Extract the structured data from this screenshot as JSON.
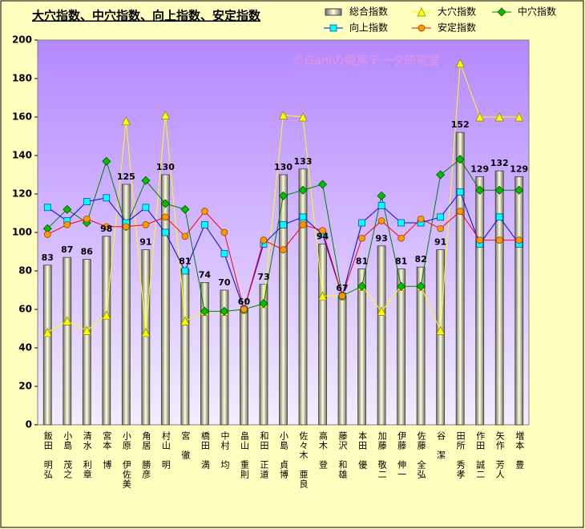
{
  "chart_data": {
    "type": "combo",
    "title": "大穴指数、中穴指数、向上指数、安定指数",
    "watermark": "©Ganiの競馬データ研究室",
    "categories": [
      "飯田　明弘",
      "小島　茂之",
      "清水　利章",
      "宮本　博",
      "小原　伊佐美",
      "角居　勝彦",
      "村山　明",
      "宮　徹",
      "橋田　満",
      "中村　均",
      "畠山　重則",
      "和田　正道",
      "小島　貞博",
      "佐々木　亜良",
      "高木　登",
      "藤沢　和雄",
      "本田　優",
      "加藤　敬二",
      "伊藤　伸一",
      "佐藤　全弘",
      "谷　潔",
      "田所　秀孝",
      "作田　誠二",
      "矢作　芳人",
      "増本　豊"
    ],
    "series": [
      {
        "name": "総合指数",
        "type": "bar",
        "color": "#808080",
        "values": [
          83,
          87,
          86,
          98,
          125,
          91,
          130,
          81,
          74,
          70,
          60,
          73,
          130,
          133,
          94,
          67,
          81,
          93,
          81,
          82,
          91,
          152,
          129,
          132,
          129
        ]
      },
      {
        "name": "大穴指数",
        "type": "line",
        "marker": "triangle",
        "color": "#ffff00",
        "marker_color": "#ffff00",
        "values": [
          48,
          54,
          49,
          57,
          158,
          48,
          161,
          54,
          59,
          59,
          60,
          63,
          161,
          160,
          67,
          67,
          72,
          59,
          72,
          72,
          49,
          188,
          160,
          160,
          160
        ]
      },
      {
        "name": "中穴指数",
        "type": "line",
        "marker": "diamond",
        "color": "#008000",
        "marker_color": "#00c000",
        "values": [
          102,
          112,
          105,
          137,
          103,
          127,
          115,
          112,
          59,
          59,
          60,
          63,
          119,
          122,
          125,
          67,
          72,
          119,
          72,
          72,
          130,
          138,
          122,
          122,
          122
        ]
      },
      {
        "name": "向上指数",
        "type": "line",
        "marker": "square",
        "color": "#0000ff",
        "marker_color": "#00ffff",
        "values": [
          113,
          106,
          116,
          118,
          105,
          113,
          100,
          80,
          104,
          89,
          60,
          94,
          104,
          108,
          99,
          67,
          105,
          114,
          105,
          105,
          108,
          121,
          94,
          108,
          94
        ]
      },
      {
        "name": "安定指数",
        "type": "line",
        "marker": "circle",
        "color": "#ff0000",
        "marker_color": "#ff9900",
        "values": [
          99,
          104,
          107,
          103,
          103,
          104,
          108,
          98,
          111,
          100,
          60,
          96,
          91,
          104,
          101,
          67,
          97,
          106,
          97,
          107,
          102,
          111,
          96,
          96,
          96
        ]
      }
    ],
    "ylim": [
      0,
      200
    ],
    "yticks": [
      0,
      20,
      40,
      60,
      80,
      100,
      120,
      140,
      160,
      180,
      200
    ],
    "grid": false,
    "legend": "top-right"
  }
}
